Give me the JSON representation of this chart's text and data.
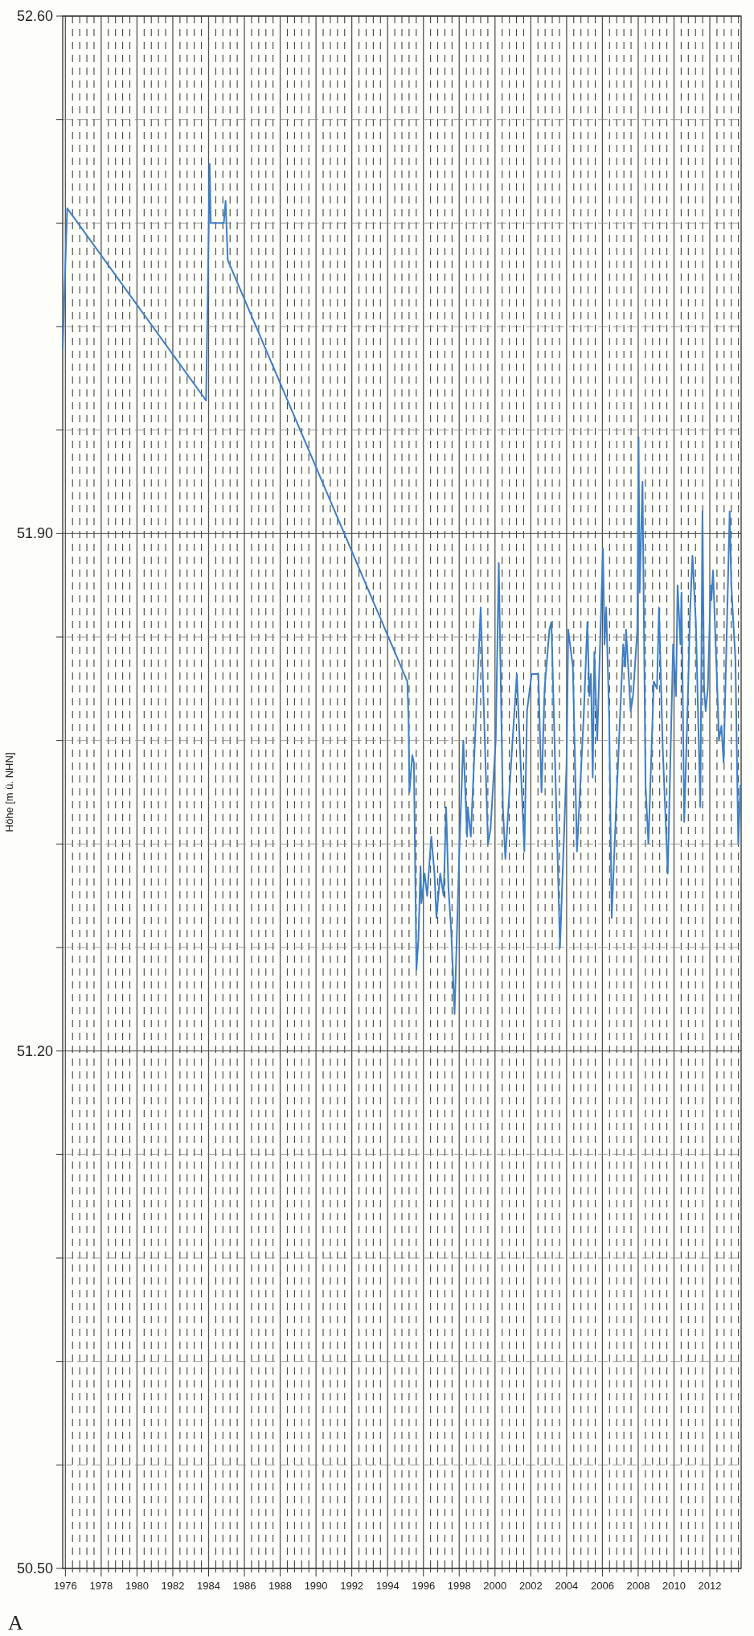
{
  "chart_data": {
    "type": "line",
    "ylabel": "Höhe [m ü. NHN]",
    "annotations": [
      "A"
    ],
    "grid": true,
    "xlim": [
      1975.85,
      2013.75
    ],
    "ylim": [
      50.5,
      52.6
    ],
    "yticks": [
      {
        "value": 52.6,
        "label": "52.60"
      },
      {
        "value": 52.46,
        "label": null
      },
      {
        "value": 52.32,
        "label": null
      },
      {
        "value": 52.18,
        "label": null
      },
      {
        "value": 52.04,
        "label": null
      },
      {
        "value": 51.9,
        "label": "51.90"
      },
      {
        "value": 51.76,
        "label": null
      },
      {
        "value": 51.62,
        "label": null
      },
      {
        "value": 51.48,
        "label": null
      },
      {
        "value": 51.34,
        "label": null
      },
      {
        "value": 51.2,
        "label": "51.20"
      },
      {
        "value": 51.06,
        "label": null
      },
      {
        "value": 50.92,
        "label": null
      },
      {
        "value": 50.78,
        "label": null
      },
      {
        "value": 50.64,
        "label": null
      },
      {
        "value": 50.5,
        "label": "50.50"
      }
    ],
    "xticks": [
      1976,
      {
        "value": 1976.4,
        "label": null
      },
      {
        "value": 1976.8,
        "label": null
      },
      {
        "value": 1977.2,
        "label": null
      },
      {
        "value": 1977.6,
        "label": null
      },
      1978,
      {
        "value": 1978.4,
        "label": null
      },
      {
        "value": 1978.8,
        "label": null
      },
      {
        "value": 1979.2,
        "label": null
      },
      {
        "value": 1979.6,
        "label": null
      },
      1980,
      {
        "value": 1980.4,
        "label": null
      },
      {
        "value": 1980.8,
        "label": null
      },
      {
        "value": 1981.2,
        "label": null
      },
      {
        "value": 1981.6,
        "label": null
      },
      1982,
      {
        "value": 1982.4,
        "label": null
      },
      {
        "value": 1982.8,
        "label": null
      },
      {
        "value": 1983.2,
        "label": null
      },
      {
        "value": 1983.6,
        "label": null
      },
      1984,
      {
        "value": 1984.4,
        "label": null
      },
      {
        "value": 1984.8,
        "label": null
      },
      {
        "value": 1985.2,
        "label": null
      },
      {
        "value": 1985.6,
        "label": null
      },
      1986,
      {
        "value": 1986.4,
        "label": null
      },
      {
        "value": 1986.8,
        "label": null
      },
      {
        "value": 1987.2,
        "label": null
      },
      {
        "value": 1987.6,
        "label": null
      },
      1988,
      {
        "value": 1988.4,
        "label": null
      },
      {
        "value": 1988.8,
        "label": null
      },
      {
        "value": 1989.2,
        "label": null
      },
      {
        "value": 1989.6,
        "label": null
      },
      1990,
      {
        "value": 1990.4,
        "label": null
      },
      {
        "value": 1990.8,
        "label": null
      },
      {
        "value": 1991.2,
        "label": null
      },
      {
        "value": 1991.6,
        "label": null
      },
      1992,
      {
        "value": 1992.4,
        "label": null
      },
      {
        "value": 1992.8,
        "label": null
      },
      {
        "value": 1993.2,
        "label": null
      },
      {
        "value": 1993.6,
        "label": null
      },
      1994,
      {
        "value": 1994.4,
        "label": null
      },
      {
        "value": 1994.8,
        "label": null
      },
      {
        "value": 1995.2,
        "label": null
      },
      {
        "value": 1995.6,
        "label": null
      },
      1996,
      {
        "value": 1996.4,
        "label": null
      },
      {
        "value": 1996.8,
        "label": null
      },
      {
        "value": 1997.2,
        "label": null
      },
      {
        "value": 1997.6,
        "label": null
      },
      1998,
      {
        "value": 1998.4,
        "label": null
      },
      {
        "value": 1998.8,
        "label": null
      },
      {
        "value": 1999.2,
        "label": null
      },
      {
        "value": 1999.6,
        "label": null
      },
      2000,
      {
        "value": 2000.4,
        "label": null
      },
      {
        "value": 2000.8,
        "label": null
      },
      {
        "value": 2001.2,
        "label": null
      },
      {
        "value": 2001.6,
        "label": null
      },
      2002,
      {
        "value": 2002.4,
        "label": null
      },
      {
        "value": 2002.8,
        "label": null
      },
      {
        "value": 2003.2,
        "label": null
      },
      {
        "value": 2003.6,
        "label": null
      },
      2004,
      {
        "value": 2004.4,
        "label": null
      },
      {
        "value": 2004.8,
        "label": null
      },
      {
        "value": 2005.2,
        "label": null
      },
      {
        "value": 2005.6,
        "label": null
      },
      2006,
      {
        "value": 2006.4,
        "label": null
      },
      {
        "value": 2006.8,
        "label": null
      },
      {
        "value": 2007.2,
        "label": null
      },
      {
        "value": 2007.6,
        "label": null
      },
      2008,
      {
        "value": 2008.4,
        "label": null
      },
      {
        "value": 2008.8,
        "label": null
      },
      {
        "value": 2009.2,
        "label": null
      },
      {
        "value": 2009.6,
        "label": null
      },
      2010,
      {
        "value": 2010.4,
        "label": null
      },
      {
        "value": 2010.8,
        "label": null
      },
      {
        "value": 2011.2,
        "label": null
      },
      {
        "value": 2011.6,
        "label": null
      },
      2012,
      {
        "value": 2012.4,
        "label": null
      },
      {
        "value": 2012.8,
        "label": null
      },
      {
        "value": 2013.2,
        "label": null
      },
      {
        "value": 2013.6,
        "label": null
      }
    ],
    "series": [
      {
        "color": "#3f7fc6",
        "x": [
          1975.85,
          1976.1,
          1983.86,
          1984.06,
          1984.12,
          1984.85,
          1984.95,
          1985.07,
          1995.1,
          1995.17,
          1995.22,
          1995.38,
          1995.47,
          1995.61,
          1995.72,
          1995.84,
          1995.89,
          1996.07,
          1996.21,
          1996.44,
          1996.62,
          1996.73,
          1996.94,
          1997.13,
          1997.27,
          1997.4,
          1997.56,
          1997.74,
          1998.02,
          1998.23,
          1998.44,
          1998.48,
          1998.65,
          1999.2,
          1999.61,
          1999.75,
          2000.04,
          2000.21,
          2000.44,
          2000.58,
          2000.85,
          2001.22,
          2001.64,
          2001.79,
          2002.05,
          2002.42,
          2002.6,
          2002.77,
          2003.04,
          2003.15,
          2003.63,
          2004.0,
          2004.09,
          2004.35,
          2004.58,
          2004.95,
          2005.16,
          2005.27,
          2005.36,
          2005.46,
          2005.55,
          2005.71,
          2006.03,
          2006.12,
          2006.21,
          2006.38,
          2006.52,
          2006.75,
          2007.16,
          2007.28,
          2007.32,
          2007.58,
          2007.71,
          2007.95,
          2008.02,
          2008.08,
          2008.24,
          2008.41,
          2008.57,
          2008.87,
          2009.05,
          2009.16,
          2009.37,
          2009.65,
          2009.95,
          2010.11,
          2010.2,
          2010.36,
          2010.42,
          2010.57,
          2010.8,
          2010.89,
          2011.03,
          2011.22,
          2011.47,
          2011.59,
          2011.68,
          2011.77,
          2011.89,
          2012.05,
          2012.09,
          2012.18,
          2012.46,
          2012.51,
          2012.65,
          2012.77,
          2012.97,
          2013.11,
          2013.2,
          2013.43,
          2013.59,
          2013.71
        ],
        "values": [
          52.15,
          52.34,
          52.08,
          52.4,
          52.32,
          52.32,
          52.35,
          52.27,
          51.7,
          51.65,
          51.55,
          51.6,
          51.59,
          51.31,
          51.35,
          51.45,
          51.4,
          51.44,
          51.41,
          51.49,
          51.44,
          51.38,
          51.44,
          51.41,
          51.53,
          51.42,
          51.36,
          51.25,
          51.48,
          51.62,
          51.49,
          51.53,
          51.49,
          51.8,
          51.48,
          51.5,
          51.62,
          51.86,
          51.53,
          51.46,
          51.57,
          51.71,
          51.47,
          51.66,
          51.71,
          51.71,
          51.55,
          51.69,
          51.77,
          51.78,
          51.34,
          51.59,
          51.77,
          51.72,
          51.47,
          51.65,
          51.78,
          51.68,
          51.71,
          51.57,
          51.74,
          51.62,
          51.88,
          51.75,
          51.8,
          51.65,
          51.38,
          51.52,
          51.75,
          51.72,
          51.77,
          51.66,
          51.68,
          51.77,
          52.03,
          51.82,
          51.97,
          51.56,
          51.48,
          51.7,
          51.69,
          51.8,
          51.61,
          51.44,
          51.75,
          51.68,
          51.83,
          51.75,
          51.82,
          51.51,
          51.7,
          51.79,
          51.87,
          51.78,
          51.53,
          51.93,
          51.69,
          51.66,
          51.69,
          51.83,
          51.81,
          51.85,
          51.66,
          51.62,
          51.64,
          51.59,
          51.79,
          51.93,
          51.83,
          51.73,
          51.48,
          51.56
        ]
      }
    ]
  }
}
